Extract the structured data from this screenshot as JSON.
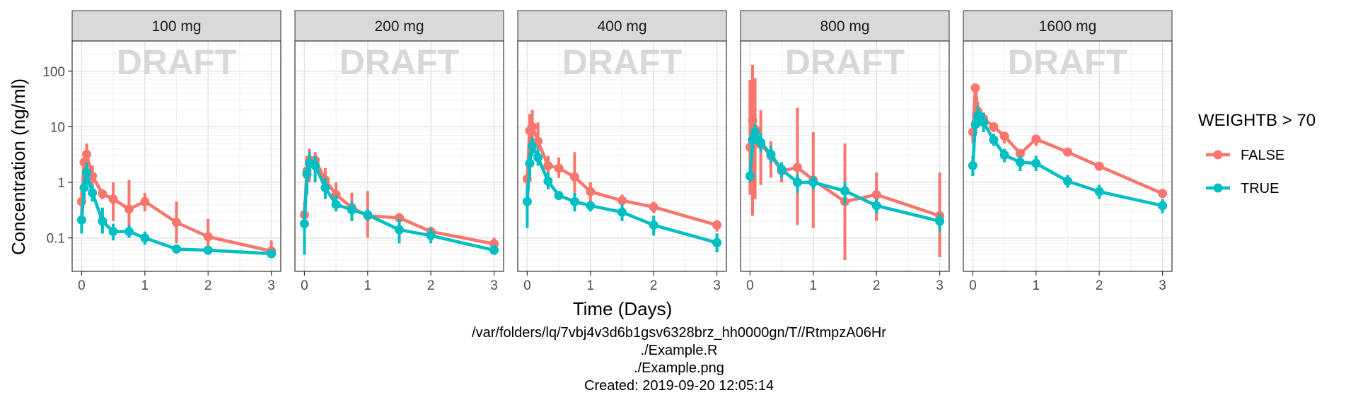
{
  "chart_data": {
    "type": "line",
    "y_scale": "log",
    "x_range": [
      -0.15,
      3.15
    ],
    "ylim": [
      0.025,
      350
    ],
    "x_ticks": [
      0,
      1,
      2,
      3
    ],
    "y_ticks": [
      0.1,
      1,
      10,
      100
    ],
    "y_tick_labels": [
      "0.1",
      "1",
      "10",
      "100"
    ],
    "xlabel": "Time (Days)",
    "ylabel": "Concentration (ng/ml)",
    "watermark": "DRAFT",
    "grid": true,
    "legend": {
      "title": "WEIGHTB > 70",
      "placement": "right",
      "entries": [
        {
          "label": "FALSE",
          "color": "#F8766D"
        },
        {
          "label": "TRUE",
          "color": "#00BFC4"
        }
      ]
    },
    "x": [
      0,
      0.04,
      0.08,
      0.17,
      0.33,
      0.5,
      0.75,
      1,
      1.5,
      2,
      3
    ],
    "panels": [
      {
        "title": "100 mg",
        "series": [
          {
            "name": "FALSE",
            "color": "#F8766D",
            "y": [
              0.45,
              2.3,
              3.2,
              1.3,
              0.62,
              0.5,
              0.33,
              0.45,
              0.19,
              0.105,
              0.058
            ],
            "lo": [
              0.3,
              1.5,
              2.0,
              0.8,
              0.5,
              0.2,
              0.12,
              0.3,
              0.08,
              0.05,
              0.045
            ],
            "hi": [
              0.7,
              3.5,
              5.0,
              2.0,
              0.75,
              1.0,
              1.1,
              0.65,
              0.45,
              0.22,
              0.09
            ]
          },
          {
            "name": "TRUE",
            "color": "#00BFC4",
            "y": [
              0.21,
              0.8,
              1.5,
              0.65,
              0.2,
              0.13,
              0.13,
              0.1,
              0.063,
              0.06,
              0.052
            ],
            "lo": [
              0.12,
              0.5,
              0.8,
              0.45,
              0.12,
              0.09,
              0.1,
              0.075,
              0.058,
              0.05,
              0.045
            ],
            "hi": [
              0.3,
              1.2,
              2.3,
              0.9,
              0.35,
              0.18,
              0.17,
              0.13,
              0.07,
              0.072,
              0.06
            ]
          }
        ]
      },
      {
        "title": "200 mg",
        "series": [
          {
            "name": "FALSE",
            "color": "#F8766D",
            "y": [
              0.26,
              1.6,
              2.5,
              2.5,
              1.1,
              0.6,
              0.35,
              0.25,
              0.23,
              0.13,
              0.078
            ],
            "lo": [
              0.15,
              0.8,
              1.0,
              1.5,
              0.6,
              0.35,
              0.2,
              0.1,
              0.18,
              0.1,
              0.06
            ],
            "hi": [
              0.45,
              3.0,
              4.0,
              3.5,
              1.8,
              1.0,
              0.65,
              0.7,
              0.28,
              0.16,
              0.1
            ]
          },
          {
            "name": "TRUE",
            "color": "#00BFC4",
            "y": [
              0.18,
              1.4,
              2.2,
              2.0,
              0.8,
              0.4,
              0.32,
              0.26,
              0.14,
              0.11,
              0.06
            ],
            "lo": [
              0.05,
              0.6,
              1.2,
              1.0,
              0.5,
              0.3,
              0.2,
              0.2,
              0.08,
              0.08,
              0.05
            ],
            "hi": [
              0.35,
              2.5,
              3.5,
              3.0,
              1.2,
              0.6,
              0.45,
              0.33,
              0.22,
              0.15,
              0.075
            ]
          }
        ]
      },
      {
        "title": "400 mg",
        "series": [
          {
            "name": "FALSE",
            "color": "#F8766D",
            "y": [
              1.15,
              8.5,
              10,
              5.5,
              2.0,
              1.8,
              1.25,
              0.68,
              0.47,
              0.36,
              0.17
            ],
            "lo": [
              0.8,
              4.0,
              5.0,
              3.0,
              1.4,
              1.2,
              0.65,
              0.45,
              0.35,
              0.28,
              0.13
            ],
            "hi": [
              1.6,
              17,
              20,
              12,
              3.0,
              2.8,
              3.5,
              1.0,
              0.6,
              0.45,
              0.21
            ]
          },
          {
            "name": "TRUE",
            "color": "#00BFC4",
            "y": [
              0.45,
              2.2,
              4.5,
              2.8,
              1.05,
              0.58,
              0.45,
              0.38,
              0.29,
              0.17,
              0.082
            ]
          },
          {
            "name": "TRUE_ERR",
            "color": "#00BFC4",
            "err_only": true,
            "y": [
              0.45,
              2.2,
              4.5,
              2.8,
              1.05,
              0.58,
              0.45,
              0.38,
              0.29,
              0.17,
              0.082
            ],
            "lo": [
              0.15,
              1.3,
              3.0,
              2.0,
              0.75,
              0.5,
              0.3,
              0.3,
              0.2,
              0.11,
              0.055
            ],
            "hi": [
              0.8,
              3.5,
              6.5,
              4.0,
              1.5,
              0.68,
              0.65,
              0.45,
              0.4,
              0.25,
              0.12
            ]
          }
        ]
      },
      {
        "title": "800 mg",
        "series": [
          {
            "name": "FALSE",
            "color": "#F8766D",
            "y": [
              4.3,
              13,
              9,
              4.8,
              3.0,
              1.6,
              1.85,
              1.1,
              0.45,
              0.6,
              0.25
            ],
            "lo": [
              0.6,
              0.25,
              0.5,
              0.9,
              1.2,
              1.0,
              0.17,
              0.15,
              0.04,
              0.2,
              0.045
            ],
            "hi": [
              70,
              130,
              75,
              20,
              5.5,
              2.2,
              22,
              8,
              5,
              1.5,
              1.5
            ]
          },
          {
            "name": "TRUE",
            "color": "#00BFC4",
            "y": [
              1.3,
              5.8,
              8.0,
              5.2,
              3.2,
              1.7,
              1.0,
              1.0,
              0.7,
              0.38,
              0.2
            ],
            "lo": [
              1.0,
              3.5,
              5.5,
              3.5,
              2.2,
              1.2,
              0.65,
              0.75,
              0.4,
              0.28,
              0.13
            ],
            "hi": [
              1.7,
              9.0,
              11,
              7.5,
              4.5,
              2.3,
              1.4,
              1.3,
              1.0,
              0.52,
              0.28
            ]
          }
        ]
      },
      {
        "title": "1600 mg",
        "series": [
          {
            "name": "FALSE",
            "color": "#F8766D",
            "y": [
              8.0,
              50,
              19,
              14,
              10,
              6.8,
              3.3,
              6.0,
              3.5,
              1.95,
              0.63
            ],
            "lo": [
              5.0,
              35,
              12,
              10,
              8,
              5,
              2.5,
              4.5,
              3.0,
              1.7,
              0.55
            ],
            "hi": [
              12,
              60,
              28,
              18,
              12,
              8,
              4,
              7,
              4,
              2.2,
              0.72
            ]
          },
          {
            "name": "TRUE",
            "color": "#00BFC4",
            "y": [
              2.0,
              11,
              16,
              12,
              5.8,
              3.1,
              2.3,
              2.2,
              1.05,
              0.68,
              0.38
            ],
            "lo": [
              1.3,
              7,
              10,
              8,
              4.5,
              2.3,
              1.6,
              1.6,
              0.8,
              0.5,
              0.28
            ],
            "hi": [
              3.0,
              16,
              24,
              18,
              7.5,
              4.0,
              3.0,
              3.0,
              1.35,
              0.9,
              0.5
            ]
          }
        ]
      }
    ]
  },
  "footer": {
    "line1": "/var/folders/lq/7vbj4v3d6b1gsv6328brz_hh0000gn/T//RtmpzA06Hr",
    "line2": "./Example.R",
    "line3": "./Example.png",
    "line4": "Created: 2019-09-20 12:05:14"
  }
}
